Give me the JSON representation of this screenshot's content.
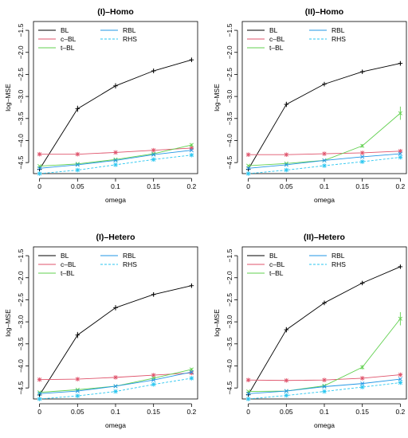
{
  "colors": {
    "BL": "#000000",
    "c-BL": "#df536b",
    "t-BL": "#61d04f",
    "RBL": "#2297e6",
    "RHS": "#28c6f0"
  },
  "chart_data": [
    {
      "type": "line",
      "title": "(I)–Homo",
      "xlabel": "omega",
      "ylabel": "log–MSE",
      "x": [
        0,
        0.05,
        0.1,
        0.15,
        0.2
      ],
      "x_tick_labels": [
        "0",
        "0.05",
        "0.1",
        "0.15",
        "0.2"
      ],
      "ylim": [
        -4.75,
        -1.3
      ],
      "y_ticks": [
        -4.5,
        -4.0,
        -3.5,
        -3.0,
        -2.5,
        -2.0,
        -1.5
      ],
      "y_tick_labels": [
        "−4.5",
        "−4.0",
        "−3.5",
        "−3.0",
        "−2.5",
        "−2.0",
        "−1.5"
      ],
      "grid": false,
      "legend": {
        "position": "top-left",
        "columns": [
          [
            "BL",
            "c–BL",
            "t–BL"
          ],
          [
            "RBL",
            "RHS"
          ]
        ]
      },
      "series": [
        {
          "name": "BL",
          "values": [
            -4.65,
            -3.28,
            -2.76,
            -2.42,
            -2.17
          ],
          "err": [
            0.04,
            0.07,
            0.06,
            0.05,
            0.05
          ]
        },
        {
          "name": "c–BL",
          "values": [
            -4.31,
            -4.31,
            -4.27,
            -4.22,
            -4.17
          ],
          "err": [
            0,
            0,
            0,
            0,
            0
          ]
        },
        {
          "name": "t–BL",
          "values": [
            -4.58,
            -4.53,
            -4.43,
            -4.3,
            -4.1
          ],
          "err": [
            0,
            0,
            0,
            0,
            0.03
          ]
        },
        {
          "name": "RBL",
          "values": [
            -4.63,
            -4.55,
            -4.45,
            -4.32,
            -4.22
          ],
          "err": [
            0,
            0,
            0,
            0,
            0
          ]
        },
        {
          "name": "RHS",
          "values": [
            -4.75,
            -4.67,
            -4.55,
            -4.43,
            -4.33
          ],
          "err": [
            0,
            0,
            0,
            0,
            0
          ]
        }
      ]
    },
    {
      "type": "line",
      "title": "(II)–Homo",
      "xlabel": "omega",
      "ylabel": "log–MSE",
      "x": [
        0,
        0.05,
        0.1,
        0.15,
        0.2
      ],
      "x_tick_labels": [
        "0",
        "0.05",
        "0.1",
        "0.15",
        "0.2"
      ],
      "ylim": [
        -4.75,
        -1.3
      ],
      "y_ticks": [
        -4.5,
        -4.0,
        -3.5,
        -3.0,
        -2.5,
        -2.0,
        -1.5
      ],
      "y_tick_labels": [
        "−4.5",
        "−4.0",
        "−3.5",
        "−3.0",
        "−2.5",
        "−2.0",
        "−1.5"
      ],
      "grid": false,
      "legend": {
        "position": "top-left",
        "columns": [
          [
            "BL",
            "c–BL",
            "t–BL"
          ],
          [
            "RBL",
            "RHS"
          ]
        ]
      },
      "series": [
        {
          "name": "BL",
          "values": [
            -4.65,
            -3.18,
            -2.72,
            -2.44,
            -2.25
          ],
          "err": [
            0.04,
            0.06,
            0.05,
            0.04,
            0.05
          ]
        },
        {
          "name": "c–BL",
          "values": [
            -4.32,
            -4.32,
            -4.3,
            -4.28,
            -4.24
          ],
          "err": [
            0,
            0,
            0,
            0,
            0
          ]
        },
        {
          "name": "t–BL",
          "values": [
            -4.57,
            -4.52,
            -4.45,
            -4.12,
            -3.38
          ],
          "err": [
            0,
            0,
            0,
            0.04,
            0.15
          ]
        },
        {
          "name": "RBL",
          "values": [
            -4.63,
            -4.55,
            -4.45,
            -4.37,
            -4.3
          ],
          "err": [
            0,
            0,
            0,
            0,
            0
          ]
        },
        {
          "name": "RHS",
          "values": [
            -4.75,
            -4.67,
            -4.57,
            -4.48,
            -4.38
          ],
          "err": [
            0,
            0,
            0,
            0,
            0
          ]
        }
      ]
    },
    {
      "type": "line",
      "title": "(I)–Hetero",
      "xlabel": "omega",
      "ylabel": "log–MSE",
      "x": [
        0,
        0.05,
        0.1,
        0.15,
        0.2
      ],
      "x_tick_labels": [
        "0",
        "0.05",
        "0.1",
        "0.15",
        "0.2"
      ],
      "ylim": [
        -4.75,
        -1.3
      ],
      "y_ticks": [
        -4.5,
        -4.0,
        -3.5,
        -3.0,
        -2.5,
        -2.0,
        -1.5
      ],
      "y_tick_labels": [
        "−4.5",
        "−4.0",
        "−3.5",
        "−3.0",
        "−2.5",
        "−2.0",
        "−1.5"
      ],
      "grid": false,
      "legend": {
        "position": "top-left",
        "columns": [
          [
            "BL",
            "c–BL",
            "t–BL"
          ],
          [
            "RBL",
            "RHS"
          ]
        ]
      },
      "series": [
        {
          "name": "BL",
          "values": [
            -4.66,
            -3.3,
            -2.68,
            -2.38,
            -2.18
          ],
          "err": [
            0.04,
            0.07,
            0.06,
            0.05,
            0.05
          ]
        },
        {
          "name": "c–BL",
          "values": [
            -4.31,
            -4.3,
            -4.26,
            -4.21,
            -4.16
          ],
          "err": [
            0,
            0,
            0,
            0,
            0
          ]
        },
        {
          "name": "t–BL",
          "values": [
            -4.6,
            -4.54,
            -4.46,
            -4.28,
            -4.08
          ],
          "err": [
            0,
            0,
            0,
            0,
            0.03
          ]
        },
        {
          "name": "RBL",
          "values": [
            -4.63,
            -4.57,
            -4.46,
            -4.32,
            -4.14
          ],
          "err": [
            0,
            0,
            0,
            0,
            0
          ]
        },
        {
          "name": "RHS",
          "values": [
            -4.75,
            -4.68,
            -4.58,
            -4.42,
            -4.28
          ],
          "err": [
            0,
            0,
            0,
            0,
            0
          ]
        }
      ]
    },
    {
      "type": "line",
      "title": "(II)–Hetero",
      "xlabel": "omega",
      "ylabel": "log–MSE",
      "x": [
        0,
        0.05,
        0.1,
        0.15,
        0.2
      ],
      "x_tick_labels": [
        "0",
        "0.05",
        "0.1",
        "0.15",
        "0.2"
      ],
      "ylim": [
        -4.75,
        -1.3
      ],
      "y_ticks": [
        -4.5,
        -4.0,
        -3.5,
        -3.0,
        -2.5,
        -2.0,
        -1.5
      ],
      "y_tick_labels": [
        "−4.5",
        "−4.0",
        "−3.5",
        "−3.0",
        "−2.5",
        "−2.0",
        "−1.5"
      ],
      "grid": false,
      "legend": {
        "position": "top-left",
        "columns": [
          [
            "BL",
            "c–BL",
            "t–BL"
          ],
          [
            "RBL",
            "RHS"
          ]
        ]
      },
      "series": [
        {
          "name": "BL",
          "values": [
            -4.65,
            -3.18,
            -2.57,
            -2.12,
            -1.75
          ],
          "err": [
            0.04,
            0.06,
            0.05,
            0.04,
            0.04
          ]
        },
        {
          "name": "c–BL",
          "values": [
            -4.32,
            -4.33,
            -4.32,
            -4.28,
            -4.2
          ],
          "err": [
            0,
            0,
            0,
            0,
            0
          ]
        },
        {
          "name": "t–BL",
          "values": [
            -4.58,
            -4.57,
            -4.45,
            -4.03,
            -2.93
          ],
          "err": [
            0,
            0,
            0,
            0.05,
            0.15
          ]
        },
        {
          "name": "RBL",
          "values": [
            -4.63,
            -4.57,
            -4.47,
            -4.4,
            -4.3
          ],
          "err": [
            0,
            0,
            0,
            0,
            0
          ]
        },
        {
          "name": "RHS",
          "values": [
            -4.75,
            -4.67,
            -4.58,
            -4.48,
            -4.38
          ],
          "err": [
            0,
            0,
            0,
            0,
            0
          ]
        }
      ]
    }
  ]
}
